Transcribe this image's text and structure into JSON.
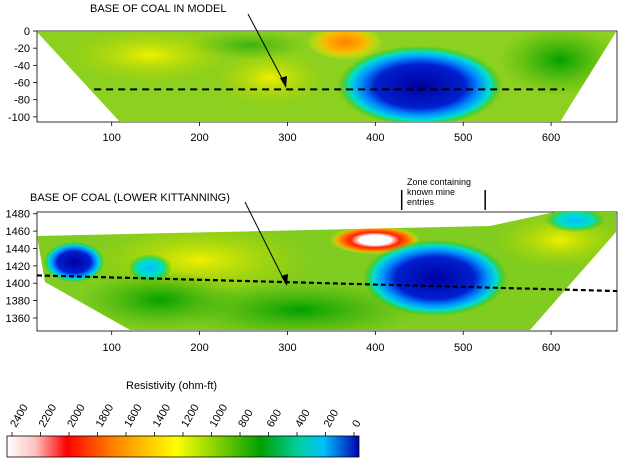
{
  "chart_data": [
    {
      "type": "heatmap",
      "annotation": "BASE OF COAL IN MODEL",
      "x_ticks": [
        100,
        200,
        300,
        400,
        500,
        600
      ],
      "y_ticks": [
        0,
        -20,
        -40,
        -60,
        -80,
        -100
      ],
      "xlim": [
        15,
        675
      ],
      "ylim": [
        -106,
        0
      ],
      "coal_base_line": {
        "x": [
          80,
          615
        ],
        "y": [
          -68,
          -68
        ]
      },
      "anomalies": [
        {
          "kind": "low",
          "x": 450,
          "y": -68,
          "value": 50
        },
        {
          "kind": "high",
          "x": 345,
          "y": -10,
          "value": 1600
        }
      ]
    },
    {
      "type": "heatmap",
      "annotation": "BASE OF COAL (LOWER KITTANNING)",
      "zone_label": [
        "Zone containing",
        "known mine",
        "entries"
      ],
      "zone_range": [
        430,
        525
      ],
      "x_ticks": [
        100,
        200,
        300,
        400,
        500,
        600
      ],
      "y_ticks": [
        1480,
        1460,
        1440,
        1420,
        1400,
        1380,
        1360
      ],
      "xlim": [
        15,
        675
      ],
      "ylim": [
        1345,
        1482
      ],
      "coal_base_line": {
        "x": [
          15,
          675
        ],
        "y": [
          1409,
          1391
        ]
      },
      "anomalies": [
        {
          "kind": "low",
          "x": 440,
          "y": 1410,
          "value": 50
        },
        {
          "kind": "high",
          "x": 380,
          "y": 1451,
          "value": 2400
        },
        {
          "kind": "low",
          "x": 60,
          "y": 1428,
          "value": 250
        }
      ]
    }
  ],
  "colorbar": {
    "title": "Resistivity (ohm-ft)",
    "ticks": [
      "2400",
      "2200",
      "2000",
      "1800",
      "1600",
      "1400",
      "1200",
      "1000",
      "800",
      "600",
      "400",
      "200",
      "0"
    ],
    "min": 0,
    "max": 2400,
    "colors": [
      "#ffffff",
      "#ff0000",
      "#ff8000",
      "#ffff00",
      "#80d000",
      "#00a000",
      "#00e0c0",
      "#0000c0"
    ]
  }
}
